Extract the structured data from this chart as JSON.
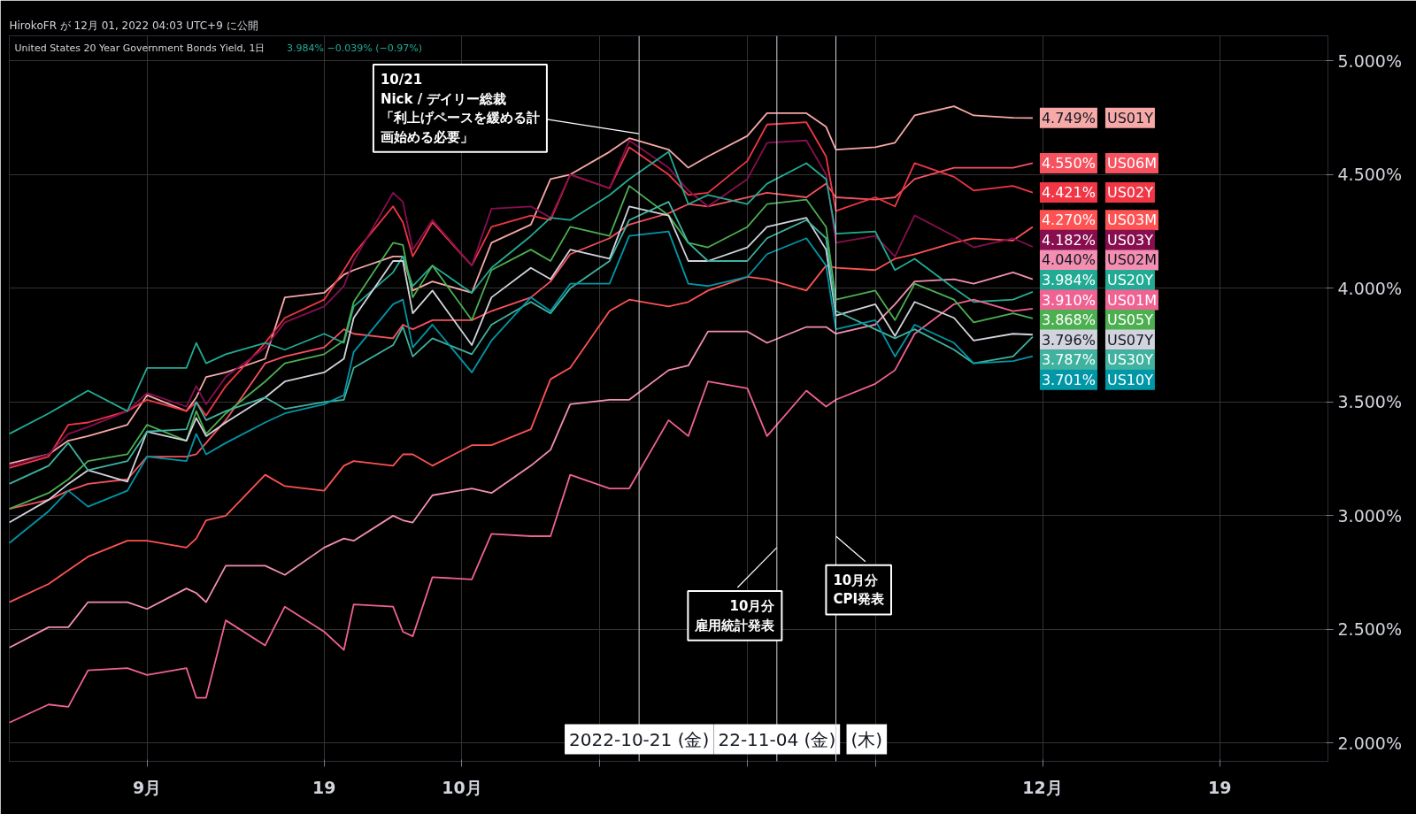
{
  "chart_data": {
    "type": "line",
    "title": "United States 20 Year Government Bonds Yield, 1日",
    "subtitle": "3.984% −0.039% (−0.97%)",
    "annotations": [
      "HirokoFR が 12月 01, 2022 04:03 UTC+9 に公開",
      "10/21",
      "Nick / デイリー総裁",
      {
        "text": "「利上げペースを緩める計画始める必要」",
        "x": "2022-10-21",
        "y": 4.68
      },
      {
        "text": "10月分",
        "x": "2022-11-04",
        "y": 2.86
      },
      "雇用統計発表",
      {
        "text": "10月分",
        "x": "2022-11-10",
        "y": 2.91
      },
      "CPI発表"
    ],
    "x": [
      "2022-08-18",
      "2022-08-22",
      "2022-08-24",
      "2022-08-26",
      "2022-08-30",
      "2022-09-01",
      "2022-09-05",
      "2022-09-06",
      "2022-09-07",
      "2022-09-09",
      "2022-09-13",
      "2022-09-15",
      "2022-09-19",
      "2022-09-21",
      "2022-09-22",
      "2022-09-26",
      "2022-09-27",
      "2022-09-28",
      "2022-09-30",
      "2022-10-04",
      "2022-10-06",
      "2022-10-10",
      "2022-10-12",
      "2022-10-14",
      "2022-10-18",
      "2022-10-20",
      "2022-10-24",
      "2022-10-26",
      "2022-10-28",
      "2022-11-01",
      "2022-11-03",
      "2022-11-07",
      "2022-11-09",
      "2022-11-10",
      "2022-11-14",
      "2022-11-16",
      "2022-11-18",
      "2022-11-22",
      "2022-11-24",
      "2022-11-28",
      "2022-11-30"
    ],
    "series": [
      {
        "name": "US01Y",
        "color": "#f7a9a7",
        "values": [
          3.23,
          3.27,
          3.33,
          3.35,
          3.4,
          3.53,
          3.46,
          3.52,
          3.61,
          3.63,
          3.69,
          3.96,
          3.98,
          4.06,
          4.08,
          4.14,
          4.14,
          3.99,
          4.03,
          3.98,
          4.2,
          4.28,
          4.48,
          4.5,
          4.6,
          4.66,
          4.61,
          4.53,
          4.58,
          4.67,
          4.77,
          4.77,
          4.71,
          4.61,
          4.62,
          4.64,
          4.76,
          4.8,
          4.76,
          4.75,
          4.749
        ],
        "value_labels": [
          null,
          null,
          null,
          null,
          null,
          null,
          null,
          null,
          null,
          null,
          null,
          null,
          null,
          null,
          null,
          null,
          null,
          null,
          null,
          null,
          null,
          null,
          null,
          null,
          null,
          null,
          null,
          null,
          null,
          null,
          null,
          null,
          null,
          null,
          null,
          null,
          null,
          null,
          null,
          null,
          "4.749%"
        ]
      },
      {
        "name": "US06M",
        "color": "#f7525f",
        "values": [
          3.03,
          3.07,
          3.11,
          3.14,
          3.16,
          3.26,
          3.26,
          3.27,
          3.32,
          3.42,
          3.67,
          3.7,
          3.74,
          3.82,
          3.8,
          3.78,
          3.84,
          3.82,
          3.86,
          3.86,
          3.9,
          3.96,
          4.03,
          4.15,
          4.22,
          4.28,
          4.33,
          4.37,
          4.36,
          4.4,
          4.42,
          4.4,
          4.46,
          4.4,
          4.39,
          4.4,
          4.48,
          4.53,
          4.53,
          4.53,
          4.55
        ],
        "value_labels": [
          null,
          null,
          null,
          null,
          null,
          null,
          null,
          null,
          null,
          null,
          null,
          null,
          null,
          null,
          null,
          null,
          null,
          null,
          null,
          null,
          null,
          null,
          null,
          null,
          null,
          null,
          null,
          null,
          null,
          null,
          null,
          null,
          null,
          null,
          null,
          null,
          null,
          null,
          null,
          null,
          "4.550%"
        ]
      },
      {
        "name": "US02Y",
        "color": "#f23645",
        "values": [
          3.21,
          3.26,
          3.4,
          3.41,
          3.46,
          3.51,
          3.46,
          3.5,
          3.44,
          3.57,
          3.76,
          3.87,
          3.95,
          4.08,
          4.15,
          4.36,
          4.29,
          4.14,
          4.29,
          4.1,
          4.27,
          4.32,
          4.3,
          4.5,
          4.44,
          4.62,
          4.5,
          4.41,
          4.42,
          4.56,
          4.72,
          4.73,
          4.58,
          4.34,
          4.4,
          4.36,
          4.55,
          4.49,
          4.43,
          4.45,
          4.421
        ],
        "value_labels": [
          null,
          null,
          null,
          null,
          null,
          null,
          null,
          null,
          null,
          null,
          null,
          null,
          null,
          null,
          null,
          null,
          null,
          null,
          null,
          null,
          null,
          null,
          null,
          null,
          null,
          null,
          null,
          null,
          null,
          null,
          null,
          null,
          null,
          null,
          null,
          null,
          null,
          null,
          null,
          null,
          "4.421%"
        ]
      },
      {
        "name": "US03M",
        "color": "#ff5252",
        "values": [
          2.62,
          2.7,
          2.76,
          2.82,
          2.89,
          2.89,
          2.86,
          2.9,
          2.98,
          3.0,
          3.18,
          3.13,
          3.11,
          3.22,
          3.24,
          3.22,
          3.27,
          3.27,
          3.22,
          3.31,
          3.31,
          3.38,
          3.6,
          3.65,
          3.9,
          3.95,
          3.92,
          3.94,
          3.99,
          4.05,
          4.04,
          3.99,
          4.1,
          4.09,
          4.08,
          4.13,
          4.15,
          4.2,
          4.22,
          4.21,
          4.27
        ],
        "value_labels": [
          null,
          null,
          null,
          null,
          null,
          null,
          null,
          null,
          null,
          null,
          null,
          null,
          null,
          null,
          null,
          null,
          null,
          null,
          null,
          null,
          null,
          null,
          null,
          null,
          null,
          null,
          null,
          null,
          null,
          null,
          null,
          null,
          null,
          null,
          null,
          null,
          null,
          null,
          null,
          null,
          "4.270%"
        ]
      },
      {
        "name": "US03Y",
        "color": "#880e4f",
        "values": [
          3.22,
          3.27,
          3.36,
          3.39,
          3.46,
          3.54,
          3.48,
          3.57,
          3.49,
          3.61,
          3.74,
          3.85,
          3.92,
          4.01,
          4.12,
          4.42,
          4.38,
          4.17,
          4.3,
          4.1,
          4.35,
          4.36,
          4.31,
          4.5,
          4.44,
          4.65,
          4.53,
          4.43,
          4.36,
          4.48,
          4.64,
          4.65,
          4.5,
          4.2,
          4.23,
          4.14,
          4.32,
          4.23,
          4.18,
          4.22,
          4.182
        ],
        "value_labels": [
          null,
          null,
          null,
          null,
          null,
          null,
          null,
          null,
          null,
          null,
          null,
          null,
          null,
          null,
          null,
          null,
          null,
          null,
          null,
          null,
          null,
          null,
          null,
          null,
          null,
          null,
          null,
          null,
          null,
          null,
          null,
          null,
          null,
          null,
          null,
          null,
          null,
          null,
          null,
          null,
          "4.182%"
        ]
      },
      {
        "name": "US02M",
        "color": "#f48fb1",
        "values": [
          2.42,
          2.51,
          2.51,
          2.62,
          2.62,
          2.59,
          2.68,
          2.66,
          2.62,
          2.78,
          2.78,
          2.74,
          2.86,
          2.9,
          2.89,
          3.0,
          2.98,
          2.97,
          3.09,
          3.12,
          3.1,
          3.22,
          3.29,
          3.49,
          3.51,
          3.51,
          3.64,
          3.66,
          3.81,
          3.81,
          3.76,
          3.83,
          3.83,
          3.8,
          3.84,
          3.93,
          4.03,
          4.04,
          4.02,
          4.07,
          4.04
        ],
        "value_labels": [
          null,
          null,
          null,
          null,
          null,
          null,
          null,
          null,
          null,
          null,
          null,
          null,
          null,
          null,
          null,
          null,
          null,
          null,
          null,
          null,
          null,
          null,
          null,
          null,
          null,
          null,
          null,
          null,
          null,
          null,
          null,
          null,
          null,
          null,
          null,
          null,
          null,
          null,
          null,
          null,
          "4.040%"
        ]
      },
      {
        "name": "US20Y",
        "color": "#22ab94",
        "values": [
          3.36,
          3.45,
          3.5,
          3.55,
          3.46,
          3.65,
          3.65,
          3.76,
          3.67,
          3.71,
          3.76,
          3.73,
          3.8,
          3.76,
          3.92,
          4.07,
          4.14,
          4.01,
          4.1,
          3.98,
          4.09,
          4.23,
          4.31,
          4.3,
          4.41,
          4.48,
          4.6,
          4.37,
          4.41,
          4.37,
          4.46,
          4.55,
          4.48,
          4.24,
          4.25,
          4.08,
          4.13,
          4.0,
          3.94,
          3.95,
          3.984
        ],
        "value_labels": [
          null,
          null,
          null,
          null,
          null,
          null,
          null,
          null,
          null,
          null,
          null,
          null,
          null,
          null,
          null,
          null,
          null,
          null,
          null,
          null,
          null,
          null,
          null,
          null,
          null,
          null,
          null,
          null,
          null,
          null,
          null,
          null,
          null,
          null,
          null,
          null,
          null,
          null,
          null,
          null,
          "3.984%"
        ]
      },
      {
        "name": "US01M",
        "color": "#f06292",
        "values": [
          2.09,
          2.17,
          2.16,
          2.32,
          2.33,
          2.3,
          2.33,
          2.2,
          2.2,
          2.54,
          2.43,
          2.6,
          2.49,
          2.41,
          2.61,
          2.6,
          2.49,
          2.47,
          2.73,
          2.72,
          2.92,
          2.91,
          2.91,
          3.18,
          3.12,
          3.12,
          3.42,
          3.35,
          3.59,
          3.56,
          3.35,
          3.55,
          3.48,
          3.51,
          3.58,
          3.64,
          3.8,
          3.93,
          3.95,
          3.9,
          3.91
        ],
        "value_labels": [
          null,
          null,
          null,
          null,
          null,
          null,
          null,
          null,
          null,
          null,
          null,
          null,
          null,
          null,
          null,
          null,
          null,
          null,
          null,
          null,
          null,
          null,
          null,
          null,
          null,
          null,
          null,
          null,
          null,
          null,
          null,
          null,
          null,
          null,
          null,
          null,
          null,
          null,
          null,
          null,
          "3.910%"
        ]
      },
      {
        "name": "US05Y",
        "color": "#4caf50",
        "values": [
          3.03,
          3.1,
          3.16,
          3.24,
          3.27,
          3.4,
          3.33,
          3.46,
          3.36,
          3.45,
          3.59,
          3.67,
          3.71,
          3.77,
          3.94,
          4.2,
          4.19,
          3.96,
          4.1,
          3.86,
          4.08,
          4.17,
          4.12,
          4.27,
          4.23,
          4.45,
          4.32,
          4.2,
          4.18,
          4.27,
          4.37,
          4.39,
          4.27,
          3.95,
          3.99,
          3.86,
          4.02,
          3.95,
          3.85,
          3.89,
          3.868
        ],
        "value_labels": [
          null,
          null,
          null,
          null,
          null,
          null,
          null,
          null,
          null,
          null,
          null,
          null,
          null,
          null,
          null,
          null,
          null,
          null,
          null,
          null,
          null,
          null,
          null,
          null,
          null,
          null,
          null,
          null,
          null,
          null,
          null,
          null,
          null,
          null,
          null,
          null,
          null,
          null,
          null,
          null,
          "3.868%"
        ]
      },
      {
        "name": "US07Y",
        "color": "#d1d4dc",
        "values": [
          2.97,
          3.07,
          3.14,
          3.2,
          3.15,
          3.37,
          3.33,
          3.43,
          3.35,
          3.41,
          3.52,
          3.59,
          3.63,
          3.69,
          3.87,
          4.12,
          4.12,
          3.89,
          3.99,
          3.75,
          3.96,
          4.09,
          4.04,
          4.17,
          4.13,
          4.36,
          4.32,
          4.12,
          4.12,
          4.18,
          4.27,
          4.31,
          4.17,
          3.88,
          3.93,
          3.79,
          3.94,
          3.87,
          3.77,
          3.8,
          3.796
        ],
        "value_labels": [
          null,
          null,
          null,
          null,
          null,
          null,
          null,
          null,
          null,
          null,
          null,
          null,
          null,
          null,
          null,
          null,
          null,
          null,
          null,
          null,
          null,
          null,
          null,
          null,
          null,
          null,
          null,
          null,
          null,
          null,
          null,
          null,
          null,
          null,
          null,
          null,
          null,
          null,
          null,
          null,
          "3.796%"
        ]
      },
      {
        "name": "US30Y",
        "color": "#3fb39f",
        "values": [
          3.14,
          3.22,
          3.32,
          3.2,
          3.24,
          3.37,
          3.38,
          3.5,
          3.42,
          3.46,
          3.52,
          3.47,
          3.5,
          3.51,
          3.65,
          3.75,
          3.83,
          3.7,
          3.78,
          3.71,
          3.84,
          3.94,
          3.89,
          4.0,
          4.12,
          4.3,
          4.38,
          4.2,
          4.12,
          4.12,
          4.22,
          4.3,
          4.22,
          3.9,
          3.82,
          3.78,
          3.82,
          3.73,
          3.67,
          3.7,
          3.787
        ],
        "value_labels": [
          null,
          null,
          null,
          null,
          null,
          null,
          null,
          null,
          null,
          null,
          null,
          null,
          null,
          null,
          null,
          null,
          null,
          null,
          null,
          null,
          null,
          null,
          null,
          null,
          null,
          null,
          null,
          null,
          null,
          null,
          null,
          null,
          null,
          null,
          null,
          null,
          null,
          null,
          null,
          null,
          "3.787%"
        ]
      },
      {
        "name": "US10Y",
        "color": "#0097a7",
        "values": [
          2.88,
          3.02,
          3.11,
          3.04,
          3.11,
          3.26,
          3.24,
          3.36,
          3.27,
          3.32,
          3.41,
          3.45,
          3.49,
          3.53,
          3.72,
          3.93,
          3.95,
          3.74,
          3.84,
          3.63,
          3.77,
          3.96,
          3.9,
          4.02,
          4.02,
          4.23,
          4.25,
          4.02,
          4.01,
          4.05,
          4.15,
          4.22,
          4.1,
          3.82,
          3.86,
          3.7,
          3.84,
          3.76,
          3.67,
          3.68,
          3.701
        ],
        "value_labels": [
          null,
          null,
          null,
          null,
          null,
          null,
          null,
          null,
          null,
          null,
          null,
          null,
          null,
          null,
          null,
          null,
          null,
          null,
          null,
          null,
          null,
          null,
          null,
          null,
          null,
          null,
          null,
          null,
          null,
          null,
          null,
          null,
          null,
          null,
          null,
          null,
          null,
          null,
          null,
          null,
          "3.701%"
        ]
      }
    ],
    "xlim": [
      "2022-08-18",
      "2022-12-30"
    ],
    "ylim": [
      1.92,
      5.11
    ],
    "xticks": [
      {
        "value": "2022-09-01",
        "label": "9月"
      },
      {
        "value": "2022-09-19",
        "label": "19"
      },
      {
        "value": "2022-10-03",
        "label": "10月"
      },
      {
        "value": "2022-10-17",
        "label": null
      },
      {
        "value": "2022-11-01",
        "label": null
      },
      {
        "value": "2022-11-14",
        "label": null
      },
      {
        "value": "2022-12-01",
        "label": "12月"
      },
      {
        "value": "2022-12-19",
        "label": "19"
      }
    ],
    "yticks": [
      {
        "value": 2,
        "label": "2.000%"
      },
      {
        "value": 2.5,
        "label": "2.500%"
      },
      {
        "value": 3,
        "label": "3.000%"
      },
      {
        "value": 3.5,
        "label": "3.500%"
      },
      {
        "value": 4,
        "label": "4.000%"
      },
      {
        "value": 4.5,
        "label": "4.500%"
      },
      {
        "value": 5,
        "label": "5.000%"
      }
    ],
    "ref_lines": [
      {
        "axis": "x",
        "value": "2022-10-21",
        "label": "2022-10-21 (金)",
        "color": "#d1d4dc"
      },
      {
        "axis": "x",
        "value": "2022-11-04",
        "label": "22-11-04 (金)",
        "color": "#d1d4dc"
      },
      {
        "axis": "x",
        "value": "2022-11-10",
        "label": "(木)",
        "color": "#d1d4dc"
      }
    ],
    "grid": true,
    "legend": "right"
  }
}
